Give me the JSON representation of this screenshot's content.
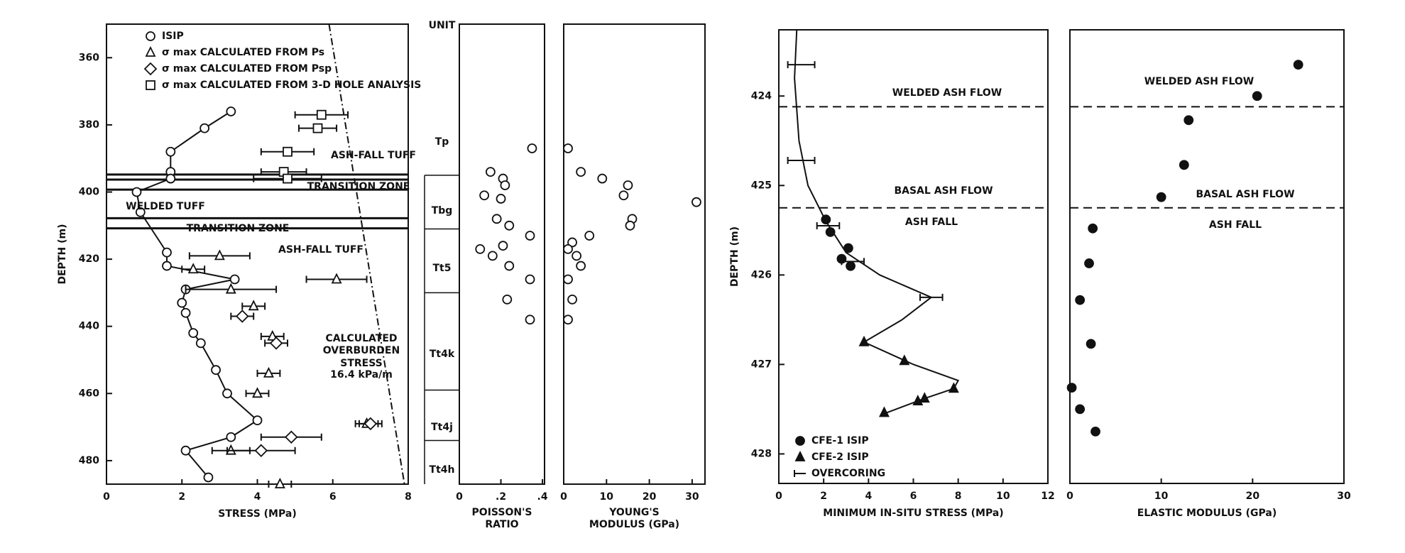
{
  "chart_data": [
    {
      "type": "scatter",
      "xlabel": "STRESS (MPa)",
      "ylabel": "DEPTH (m)",
      "xlim": [
        0,
        8
      ],
      "xticks": [
        0,
        2,
        4,
        6,
        8
      ],
      "ylim": [
        350,
        487
      ],
      "yticks": [
        360,
        380,
        400,
        420,
        440,
        460,
        480
      ],
      "y_inverted": true,
      "layer_lines": [
        394.8,
        396.3,
        399.3,
        407.8,
        410.8
      ],
      "annotations": [
        "ASH-FALL TUFF",
        "TRANSITION ZONE",
        "WELDED TUFF",
        "TRANSITION ZONE",
        "ASH-FALL TUFF",
        "CALCULATED",
        "OVERBURDEN",
        "STRESS",
        "16.4 kPa/m"
      ],
      "curves": [
        {
          "x": [
            5.9,
            7.9
          ],
          "values": [
            350,
            487
          ],
          "dash": "dashdot"
        }
      ],
      "series": [
        {
          "name": "ISIP",
          "marker": "circle",
          "color": "#111",
          "fill": "#fff",
          "connect": true,
          "x": [
            3.3,
            2.6,
            1.7,
            1.7,
            1.7,
            0.8,
            0.9,
            1.6,
            1.6,
            3.4,
            2.1,
            2.0,
            2.1,
            2.3,
            2.5,
            2.9,
            3.2,
            4.0,
            3.3,
            2.1,
            2.7
          ],
          "values": [
            376,
            381,
            388,
            394,
            396,
            400,
            406,
            418,
            422,
            426,
            429,
            433,
            436,
            442,
            445,
            453,
            460,
            468,
            473,
            477,
            485
          ]
        },
        {
          "name": "σ max CALCULATED FROM Ps",
          "marker": "triangle",
          "color": "#111",
          "fill": "#fff",
          "x": [
            3.0,
            2.3,
            6.1,
            3.3,
            3.9,
            4.4,
            4.3,
            4.0,
            6.9,
            3.3,
            4.6
          ],
          "values": [
            419,
            423,
            426,
            429,
            434,
            443,
            454,
            460,
            469,
            477,
            487
          ],
          "xerr": [
            0.8,
            0.3,
            0.8,
            1.2,
            0.3,
            0.3,
            0.3,
            0.3,
            0.3,
            0.5,
            0.3
          ]
        },
        {
          "name": "σ max CALCULATED FROM Psp",
          "marker": "diamond",
          "color": "#111",
          "fill": "#fff",
          "x": [
            3.6,
            4.5,
            7.0,
            4.9,
            4.1
          ],
          "values": [
            437,
            445,
            469,
            473,
            477
          ],
          "xerr": [
            0.3,
            0.3,
            0.3,
            0.8,
            0.9
          ]
        },
        {
          "name": "σ max CALCULATED FROM 3-D HOLE ANALYSIS",
          "marker": "square",
          "color": "#111",
          "fill": "#fff",
          "x": [
            5.7,
            5.6,
            4.8,
            4.7,
            4.8
          ],
          "values": [
            377,
            381,
            388,
            394,
            396
          ],
          "xerr": [
            0.7,
            0.5,
            0.7,
            0.6,
            0.9
          ]
        }
      ]
    },
    {
      "type": "strata",
      "header": "UNIT",
      "ylim": [
        350,
        487
      ],
      "names": [
        "Tp",
        "Tbg",
        "Tt5",
        "Tt4k",
        "Tt4j",
        "Tt4h"
      ],
      "boundaries": [
        395,
        411,
        430,
        459,
        474
      ]
    },
    {
      "type": "scatter",
      "xlabel": [
        "POISSON'S",
        "RATIO"
      ],
      "xlim": [
        0,
        0.41
      ],
      "xticks": [
        0,
        {
          "value": 0.2,
          "label": ".2"
        },
        {
          "value": 0.4,
          "label": ".4"
        }
      ],
      "ylim": [
        350,
        487
      ],
      "y_inverted": true,
      "series": [
        {
          "marker": "circle",
          "color": "#111",
          "fill": "#fff",
          "x": [
            0.35,
            0.15,
            0.21,
            0.22,
            0.12,
            0.2,
            0.18,
            0.24,
            0.34,
            0.21,
            0.1,
            0.16,
            0.24,
            0.34,
            0.23,
            0.34
          ],
          "values": [
            387,
            394,
            396,
            398,
            401,
            402,
            408,
            410,
            413,
            416,
            417,
            419,
            422,
            426,
            432,
            438
          ]
        }
      ]
    },
    {
      "type": "scatter",
      "xlabel": [
        "YOUNG'S",
        "MODULUS (GPa)"
      ],
      "xlim": [
        0,
        33
      ],
      "xticks": [
        0,
        10,
        20,
        30
      ],
      "ylim": [
        350,
        487
      ],
      "y_inverted": true,
      "series": [
        {
          "marker": "circle",
          "color": "#111",
          "fill": "#fff",
          "x": [
            1,
            4,
            9,
            15,
            14,
            31,
            16,
            15.5,
            6,
            2,
            1,
            3,
            4,
            1,
            2,
            1
          ],
          "values": [
            387,
            394,
            396,
            398,
            401,
            403,
            408,
            410,
            413,
            415,
            417,
            419,
            422,
            426,
            432,
            438
          ]
        }
      ]
    },
    {
      "type": "scatter",
      "xlabel": "MINIMUM IN-SITU STRESS (MPa)",
      "ylabel": "DEPTH (m)",
      "xlim": [
        0,
        12
      ],
      "xticks": [
        0,
        2,
        4,
        6,
        8,
        10,
        12
      ],
      "ylim": [
        423.26,
        428.33
      ],
      "yticks": [
        424,
        425,
        426,
        427,
        428
      ],
      "y_inverted": true,
      "hlines": [
        424.12,
        425.25
      ],
      "annotations": [
        "WELDED ASH FLOW",
        "BASAL ASH FLOW",
        "ASH FALL"
      ],
      "curves": [
        {
          "x": [
            0.8,
            0.7,
            0.9,
            1.3,
            2.1,
            3.0,
            4.5,
            6.8,
            5.5,
            3.8,
            6.0,
            8.0,
            7.8,
            6.5,
            4.7
          ],
          "values": [
            423.26,
            423.8,
            424.5,
            425.0,
            425.4,
            425.75,
            426.0,
            426.25,
            426.5,
            426.75,
            427.0,
            427.18,
            427.27,
            427.38,
            427.55
          ],
          "dash": "solid"
        }
      ],
      "series": [
        {
          "name": "CFE-1 ISIP",
          "marker": "circle",
          "color": "#111",
          "fill": "#111",
          "x": [
            2.1,
            2.3,
            3.1,
            2.8,
            3.2
          ],
          "values": [
            425.38,
            425.52,
            425.7,
            425.82,
            425.9
          ]
        },
        {
          "name": "CFE-2 ISIP",
          "marker": "triangle",
          "color": "#111",
          "fill": "#111",
          "x": [
            3.8,
            5.6,
            7.8,
            6.5,
            6.2,
            4.7
          ],
          "values": [
            426.75,
            426.96,
            427.27,
            427.38,
            427.41,
            427.54
          ]
        },
        {
          "name": "OVERCORING",
          "marker": "none",
          "color": "#111",
          "fill": "#111",
          "x": [
            1.0,
            1.0,
            2.2,
            3.3,
            6.8
          ],
          "values": [
            423.65,
            424.72,
            425.45,
            425.85,
            426.25
          ],
          "xerr": [
            0.6,
            0.6,
            0.5,
            0.5,
            0.5
          ]
        }
      ]
    },
    {
      "type": "scatter",
      "xlabel": "ELASTIC MODULUS (GPa)",
      "xlim": [
        0,
        30
      ],
      "xticks": [
        0,
        10,
        20,
        30
      ],
      "ylim": [
        423.26,
        428.33
      ],
      "y_inverted": true,
      "hlines": [
        424.12,
        425.25
      ],
      "annotations": [
        "WELDED ASH FLOW",
        "BASAL ASH FLOW",
        "ASH FALL"
      ],
      "series": [
        {
          "marker": "circle",
          "color": "#111",
          "fill": "#111",
          "x": [
            25,
            20.5,
            13,
            12.5,
            10,
            2.5,
            2.1,
            1.1,
            2.3,
            0.2,
            1.1,
            2.8
          ],
          "values": [
            423.65,
            424.0,
            424.27,
            424.77,
            425.13,
            425.48,
            425.87,
            426.28,
            426.77,
            427.26,
            427.5,
            427.75
          ]
        }
      ]
    }
  ]
}
